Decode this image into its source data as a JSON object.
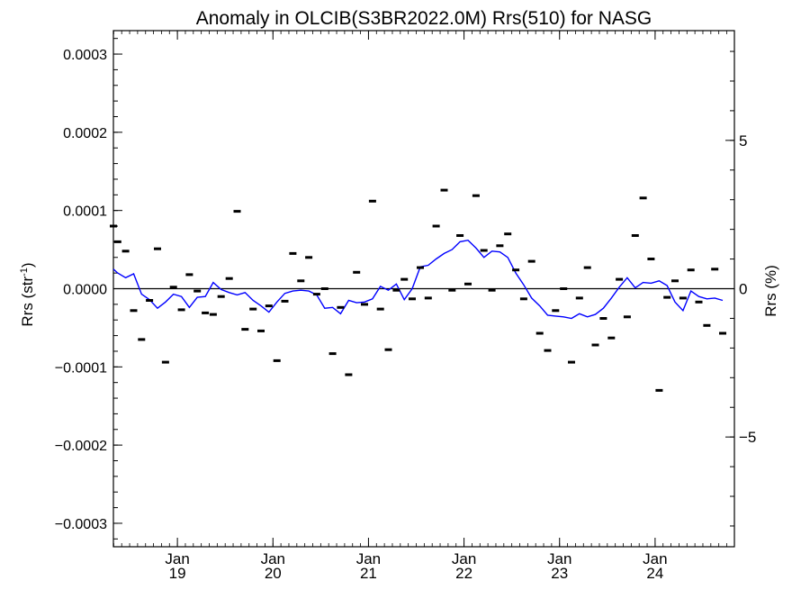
{
  "chart_data": {
    "type": "scatter",
    "title": "Anomaly in OLCIB(S3BR2022.0M) Rrs(510) for NASG",
    "ylabel_left": "Rrs (str",
    "ylabel_left_sup": "-1",
    "ylabel_left_end": ")",
    "ylabel_right": "Rrs (%)",
    "ylim_left": [
      -0.00033,
      0.00033
    ],
    "ylim_right": [
      -8.7,
      8.7
    ],
    "xlim": [
      2018.33,
      2024.83
    ],
    "y_ticks_left": [
      -0.0003,
      -0.0002,
      -0.0001,
      0,
      0.0001,
      0.0002,
      0.0003
    ],
    "y_tick_labels_left": [
      "−0.0003",
      "−0.0002",
      "−0.0001",
      "0.0000",
      "0.0001",
      "0.0002",
      "0.0003"
    ],
    "y_ticks_right": [
      -5,
      0,
      5
    ],
    "y_tick_labels_right": [
      "−5",
      "0",
      "5"
    ],
    "x_ticks": [
      {
        "x": 2019.0,
        "month": "Jan",
        "year": "19"
      },
      {
        "x": 2020.0,
        "month": "Jan",
        "year": "20"
      },
      {
        "x": 2021.0,
        "month": "Jan",
        "year": "21"
      },
      {
        "x": 2022.0,
        "month": "Jan",
        "year": "22"
      },
      {
        "x": 2023.0,
        "month": "Jan",
        "year": "23"
      },
      {
        "x": 2024.0,
        "month": "Jan",
        "year": "24"
      }
    ],
    "zero_line": 0,
    "colors": {
      "points": "#000000",
      "line": "#0000ff",
      "axis": "#000000"
    },
    "series": [
      {
        "kind": "monthly_anomaly_points",
        "points": [
          [
            2018.33,
            8e-05
          ],
          [
            2018.375,
            6e-05
          ],
          [
            2018.458,
            4.8e-05
          ],
          [
            2018.542,
            -2.8e-05
          ],
          [
            2018.625,
            -6.5e-05
          ],
          [
            2018.708,
            -1.5e-05
          ],
          [
            2018.792,
            5.1e-05
          ],
          [
            2018.875,
            -9.4e-05
          ],
          [
            2018.958,
            2e-06
          ],
          [
            2019.042,
            -2.7e-05
          ],
          [
            2019.125,
            1.8e-05
          ],
          [
            2019.208,
            -3e-06
          ],
          [
            2019.292,
            -3.1e-05
          ],
          [
            2019.375,
            -3.3e-05
          ],
          [
            2019.458,
            -1e-05
          ],
          [
            2019.542,
            1.3e-05
          ],
          [
            2019.625,
            9.9e-05
          ],
          [
            2019.708,
            -5.2e-05
          ],
          [
            2019.792,
            -2.6e-05
          ],
          [
            2019.875,
            -5.4e-05
          ],
          [
            2019.958,
            -2.2e-05
          ],
          [
            2020.042,
            -9.2e-05
          ],
          [
            2020.125,
            -1.6e-05
          ],
          [
            2020.208,
            4.5e-05
          ],
          [
            2020.292,
            1e-05
          ],
          [
            2020.375,
            4e-05
          ],
          [
            2020.458,
            -7e-06
          ],
          [
            2020.542,
            0.0
          ],
          [
            2020.625,
            -8.3e-05
          ],
          [
            2020.708,
            -2.4e-05
          ],
          [
            2020.792,
            -0.00011
          ],
          [
            2020.875,
            2.1e-05
          ],
          [
            2020.958,
            -2e-05
          ],
          [
            2021.042,
            0.000112
          ],
          [
            2021.125,
            -2.6e-05
          ],
          [
            2021.208,
            -7.8e-05
          ],
          [
            2021.292,
            -2e-06
          ],
          [
            2021.375,
            1.2e-05
          ],
          [
            2021.458,
            -1.3e-05
          ],
          [
            2021.542,
            2.7e-05
          ],
          [
            2021.625,
            -1.2e-05
          ],
          [
            2021.708,
            8e-05
          ],
          [
            2021.792,
            0.000126
          ],
          [
            2021.875,
            -2e-06
          ],
          [
            2021.958,
            6.8e-05
          ],
          [
            2022.042,
            6e-06
          ],
          [
            2022.125,
            0.000119
          ],
          [
            2022.208,
            4.9e-05
          ],
          [
            2022.292,
            -2e-06
          ],
          [
            2022.375,
            5.5e-05
          ],
          [
            2022.458,
            7e-05
          ],
          [
            2022.542,
            2.4e-05
          ],
          [
            2022.625,
            -1.3e-05
          ],
          [
            2022.708,
            3.5e-05
          ],
          [
            2022.792,
            -5.7e-05
          ],
          [
            2022.875,
            -7.9e-05
          ],
          [
            2022.958,
            -2.8e-05
          ],
          [
            2023.042,
            0.0
          ],
          [
            2023.125,
            -9.4e-05
          ],
          [
            2023.208,
            -1.2e-05
          ],
          [
            2023.292,
            2.7e-05
          ],
          [
            2023.375,
            -7.2e-05
          ],
          [
            2023.458,
            -3.8e-05
          ],
          [
            2023.542,
            -6.3e-05
          ],
          [
            2023.625,
            1.2e-05
          ],
          [
            2023.708,
            -3.6e-05
          ],
          [
            2023.792,
            6.8e-05
          ],
          [
            2023.875,
            0.000116
          ],
          [
            2023.958,
            3.8e-05
          ],
          [
            2024.042,
            -0.00013
          ],
          [
            2024.125,
            -1.1e-05
          ],
          [
            2024.208,
            1e-05
          ],
          [
            2024.292,
            -1.2e-05
          ],
          [
            2024.375,
            2.4e-05
          ],
          [
            2024.458,
            -1.7e-05
          ],
          [
            2024.542,
            -4.7e-05
          ],
          [
            2024.625,
            2.5e-05
          ],
          [
            2024.708,
            -5.7e-05
          ]
        ]
      },
      {
        "kind": "smoothed_line",
        "points": [
          [
            2018.33,
            2.5e-05
          ],
          [
            2018.375,
            2e-05
          ],
          [
            2018.458,
            1.4e-05
          ],
          [
            2018.542,
            1.9e-05
          ],
          [
            2018.625,
            -7e-06
          ],
          [
            2018.708,
            -1.4e-05
          ],
          [
            2018.792,
            -2.5e-05
          ],
          [
            2018.875,
            -1.7e-05
          ],
          [
            2018.958,
            -7e-06
          ],
          [
            2019.042,
            -1e-05
          ],
          [
            2019.125,
            -2.4e-05
          ],
          [
            2019.208,
            -1.1e-05
          ],
          [
            2019.292,
            -1e-05
          ],
          [
            2019.375,
            8e-06
          ],
          [
            2019.458,
            -1e-06
          ],
          [
            2019.542,
            -5e-06
          ],
          [
            2019.625,
            -8e-06
          ],
          [
            2019.708,
            -5e-06
          ],
          [
            2019.792,
            -1.5e-05
          ],
          [
            2019.875,
            -2.2e-05
          ],
          [
            2019.958,
            -3e-05
          ],
          [
            2020.042,
            -1.7e-05
          ],
          [
            2020.125,
            -6e-06
          ],
          [
            2020.208,
            -3e-06
          ],
          [
            2020.292,
            -2e-06
          ],
          [
            2020.375,
            -3e-06
          ],
          [
            2020.458,
            -8e-06
          ],
          [
            2020.542,
            -2.5e-05
          ],
          [
            2020.625,
            -2.4e-05
          ],
          [
            2020.708,
            -3.2e-05
          ],
          [
            2020.792,
            -1.5e-05
          ],
          [
            2020.875,
            -1.8e-05
          ],
          [
            2020.958,
            -1.7e-05
          ],
          [
            2021.042,
            -1.3e-05
          ],
          [
            2021.125,
            3e-06
          ],
          [
            2021.208,
            -2e-06
          ],
          [
            2021.292,
            6e-06
          ],
          [
            2021.375,
            -1.4e-05
          ],
          [
            2021.458,
            0.0
          ],
          [
            2021.542,
            2.8e-05
          ],
          [
            2021.625,
            3e-05
          ],
          [
            2021.708,
            3.8e-05
          ],
          [
            2021.792,
            4.5e-05
          ],
          [
            2021.875,
            5e-05
          ],
          [
            2021.958,
            6e-05
          ],
          [
            2022.042,
            6.2e-05
          ],
          [
            2022.125,
            5.2e-05
          ],
          [
            2022.208,
            4e-05
          ],
          [
            2022.292,
            4.8e-05
          ],
          [
            2022.375,
            4.7e-05
          ],
          [
            2022.458,
            4e-05
          ],
          [
            2022.542,
            2e-05
          ],
          [
            2022.625,
            5e-06
          ],
          [
            2022.708,
            -1.2e-05
          ],
          [
            2022.792,
            -2.2e-05
          ],
          [
            2022.875,
            -3.4e-05
          ],
          [
            2022.958,
            -3.5e-05
          ],
          [
            2023.042,
            -3.6e-05
          ],
          [
            2023.125,
            -3.8e-05
          ],
          [
            2023.208,
            -3.2e-05
          ],
          [
            2023.292,
            -3.6e-05
          ],
          [
            2023.375,
            -3.3e-05
          ],
          [
            2023.458,
            -2.5e-05
          ],
          [
            2023.542,
            -1.2e-05
          ],
          [
            2023.625,
            2e-06
          ],
          [
            2023.708,
            1.4e-05
          ],
          [
            2023.792,
            1e-06
          ],
          [
            2023.875,
            8e-06
          ],
          [
            2023.958,
            7e-06
          ],
          [
            2024.042,
            1e-05
          ],
          [
            2024.125,
            4e-06
          ],
          [
            2024.208,
            -1.7e-05
          ],
          [
            2024.292,
            -2.8e-05
          ],
          [
            2024.375,
            -3e-06
          ],
          [
            2024.458,
            -1e-05
          ],
          [
            2024.542,
            -1.3e-05
          ],
          [
            2024.625,
            -1.2e-05
          ],
          [
            2024.708,
            -1.5e-05
          ]
        ]
      }
    ]
  }
}
